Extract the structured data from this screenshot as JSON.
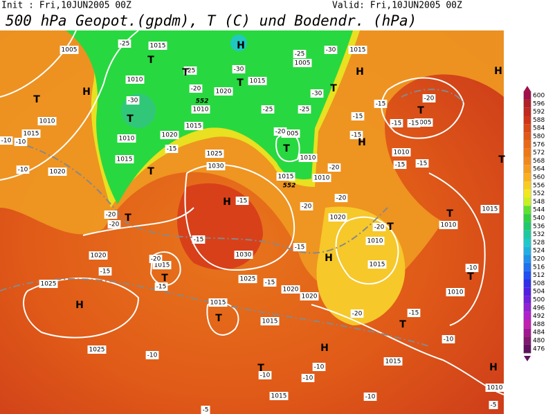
{
  "header": {
    "init": "Init : Fri,10JUN2005 00Z",
    "valid": "Valid: Fri,10JUN2005 00Z",
    "title": "500 hPa Geopot.(gpdm), T (C) und Bodendr. (hPa)"
  },
  "colorbar": {
    "ticks": [
      600,
      596,
      592,
      588,
      584,
      580,
      576,
      572,
      568,
      564,
      560,
      556,
      552,
      548,
      544,
      540,
      536,
      532,
      528,
      524,
      520,
      516,
      512,
      508,
      504,
      500,
      496,
      492,
      488,
      484,
      480,
      476
    ]
  },
  "map": {
    "pressure_labels": [
      "1005",
      "1015",
      "1010",
      "1010",
      "1015",
      "1020",
      "1010",
      "1015",
      "1010",
      "1015",
      "1020",
      "1025",
      "1030",
      "1020",
      "1015",
      "1005",
      "1015",
      "1005",
      "1010",
      "1015",
      "1010",
      "1020",
      "1030",
      "1025",
      "1020",
      "1020",
      "1015",
      "1020",
      "1025",
      "1025",
      "1015",
      "1015",
      "1015",
      "1015",
      "1015",
      "1010",
      "1010",
      "1010",
      "1005",
      "1010",
      "1015",
      "1010"
    ],
    "temperature_labels": [
      "-25",
      "-25",
      "-20",
      "-30",
      "-30",
      "-25",
      "-30",
      "-30",
      "-25",
      "-25",
      "-20",
      "-15",
      "-15",
      "-20",
      "-15",
      "-15",
      "-15",
      "-15",
      "-15",
      "-15",
      "-20",
      "-20",
      "-20",
      "-15",
      "-20",
      "-20",
      "-15",
      "-15",
      "-20",
      "-20",
      "-15",
      "-15",
      "-15",
      "-20",
      "-15",
      "-10",
      "-10",
      "-10",
      "-10",
      "-10",
      "-10",
      "-10",
      "-5",
      "-5",
      "-10",
      "-10",
      "-10"
    ],
    "centers": [
      "H",
      "T",
      "T",
      "T",
      "T",
      "T",
      "T",
      "T",
      "H",
      "H",
      "T",
      "T",
      "T",
      "H",
      "T",
      "H",
      "T",
      "H",
      "T",
      "T",
      "T",
      "T",
      "H",
      "T",
      "H",
      "T",
      "H",
      "H"
    ],
    "geopotential_labels": [
      "552",
      "552"
    ]
  }
}
